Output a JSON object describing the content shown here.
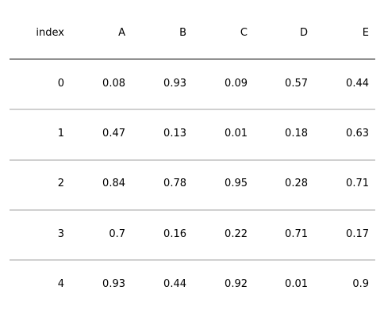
{
  "chart_data": {
    "type": "table",
    "columns": [
      "index",
      "A",
      "B",
      "C",
      "D",
      "E"
    ],
    "rows": [
      [
        "0",
        "0.08",
        "0.93",
        "0.09",
        "0.57",
        "0.44"
      ],
      [
        "1",
        "0.47",
        "0.13",
        "0.01",
        "0.18",
        "0.63"
      ],
      [
        "2",
        "0.84",
        "0.78",
        "0.95",
        "0.28",
        "0.71"
      ],
      [
        "3",
        "0.7",
        "0.16",
        "0.22",
        "0.71",
        "0.17"
      ],
      [
        "4",
        "0.93",
        "0.44",
        "0.92",
        "0.01",
        "0.9"
      ]
    ],
    "header_rule_color": "#000000",
    "row_rule_color": "#d0d0d0"
  }
}
